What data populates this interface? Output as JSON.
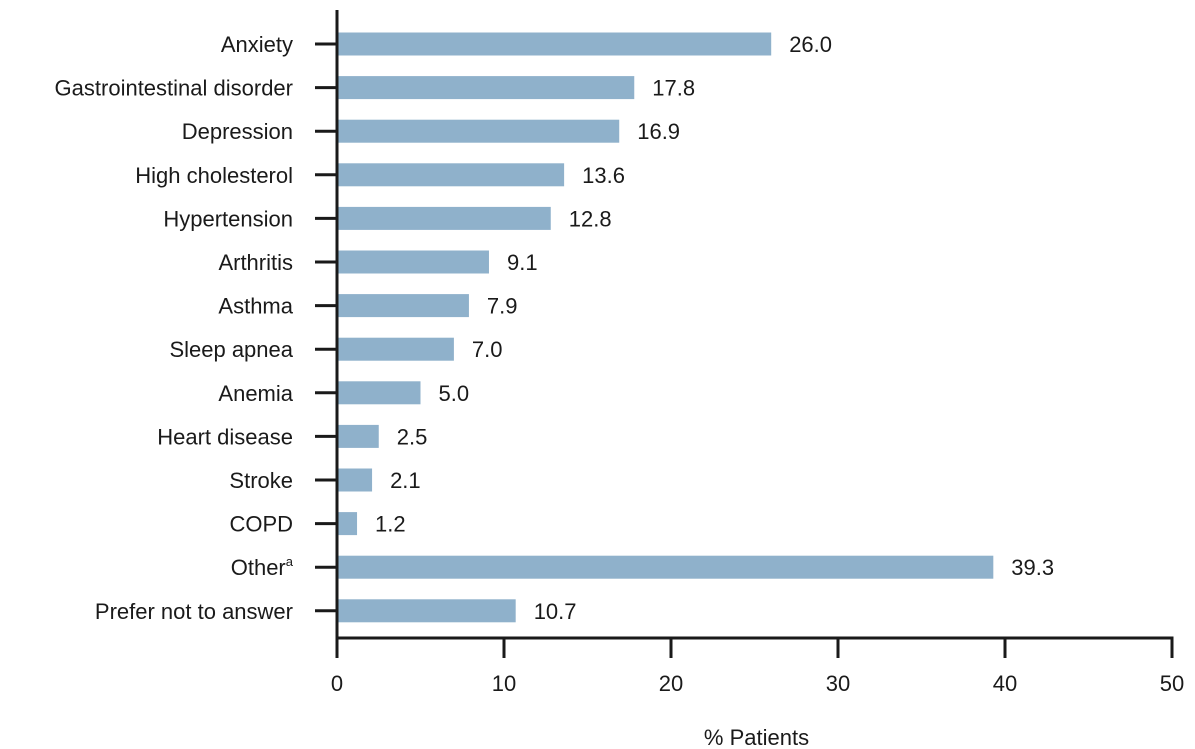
{
  "chart_data": {
    "type": "bar",
    "orientation": "horizontal",
    "categories": [
      "Anxiety",
      "Gastrointestinal disorder",
      "Depression",
      "High cholesterol",
      "Hypertension",
      "Arthritis",
      "Asthma",
      "Sleep apnea",
      "Anemia",
      "Heart disease",
      "Stroke",
      "COPD",
      "Other",
      "Prefer not to answer"
    ],
    "category_superscripts": [
      "",
      "",
      "",
      "",
      "",
      "",
      "",
      "",
      "",
      "",
      "",
      "",
      "a",
      ""
    ],
    "values": [
      26.0,
      17.8,
      16.9,
      13.6,
      12.8,
      9.1,
      7.9,
      7.0,
      5.0,
      2.5,
      2.1,
      1.2,
      39.3,
      10.7
    ],
    "value_labels": [
      "26.0",
      "17.8",
      "16.9",
      "13.6",
      "12.8",
      "9.1",
      "7.9",
      "7.0",
      "5.0",
      "2.5",
      "2.1",
      "1.2",
      "39.3",
      "10.7"
    ],
    "title": "",
    "xlabel": "% Patients",
    "ylabel": "",
    "xlim": [
      0,
      50
    ],
    "xticks": [
      0,
      10,
      20,
      30,
      40,
      50
    ],
    "grid": false,
    "legend": "none",
    "bar_color": "#8fb1cb",
    "axis_color": "#1a1a1a"
  }
}
